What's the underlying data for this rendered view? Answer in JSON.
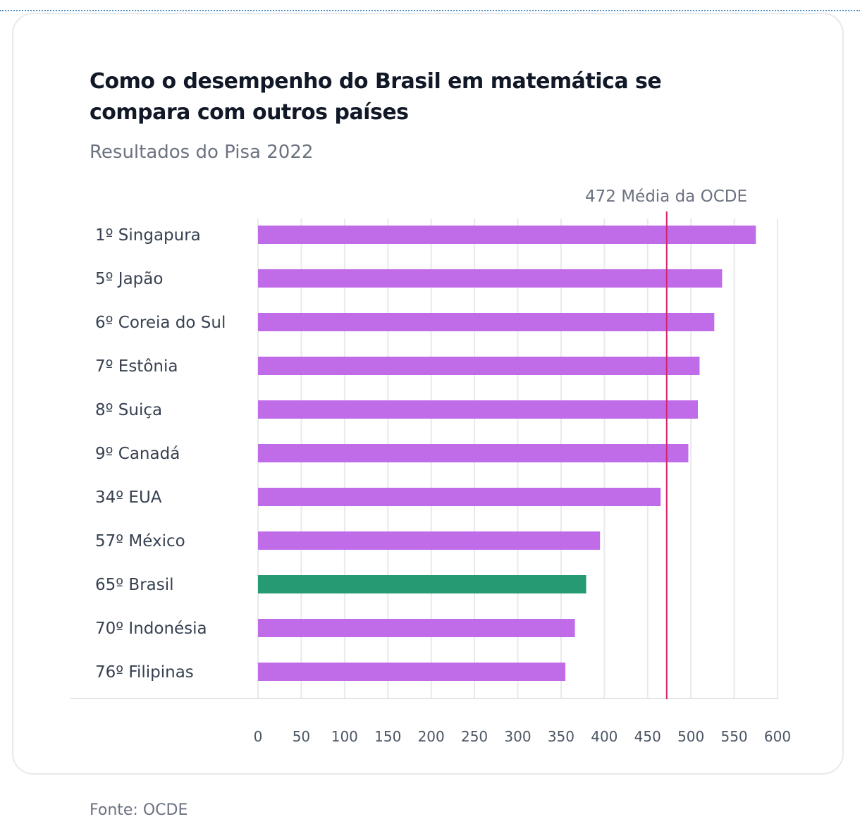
{
  "chart_data": {
    "type": "bar",
    "orientation": "horizontal",
    "title": "Como o desempenho do Brasil em matemática se compara com outros países",
    "subtitle": "Resultados do Pisa 2022",
    "categories": [
      "1º Singapura",
      "5º Japão",
      "6º Coreia do Sul",
      "7º Estônia",
      "8º Suiça",
      "9º Canadá",
      "34º EUA",
      "57º México",
      "65º Brasil",
      "70º Indonésia",
      "76º Filipinas"
    ],
    "values": [
      575,
      536,
      527,
      510,
      508,
      497,
      465,
      395,
      379,
      366,
      355
    ],
    "highlight_category": "65º Brasil",
    "xlim": [
      0,
      600
    ],
    "xticks": [
      0,
      50,
      100,
      150,
      200,
      250,
      300,
      350,
      400,
      450,
      500,
      550,
      600
    ],
    "grid": true,
    "reference_line": {
      "value": 472,
      "label": "472 Média da OCDE"
    },
    "colors": {
      "bar": "#c06ce9",
      "highlight": "#259a73",
      "reference": "#d6246e",
      "grid": "#e8e9ec"
    }
  },
  "source": "Fonte: OCDE"
}
